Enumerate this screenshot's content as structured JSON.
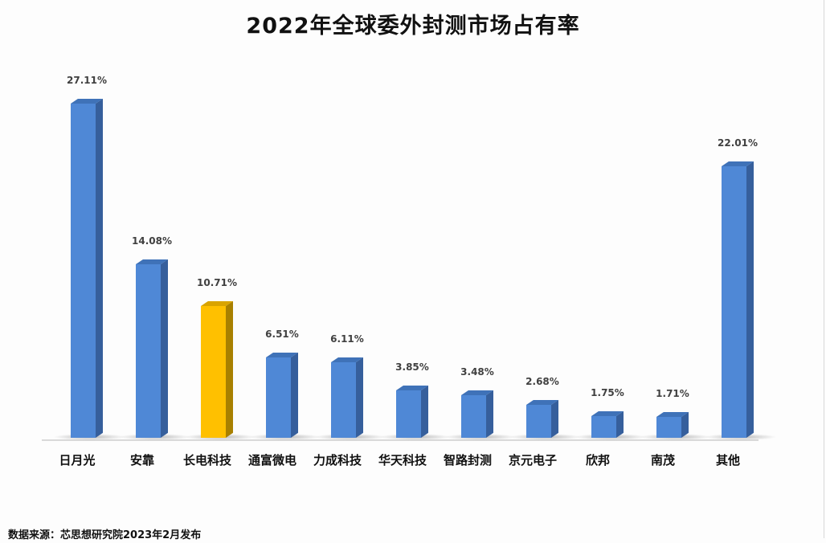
{
  "title": "2022年全球委外封测市场占有率",
  "source": "数据来源：芯思想研究院2023年2月发布",
  "colors": {
    "default_front": "#4f88d6",
    "default_side": "#365f9c",
    "default_top": "#3f72b8",
    "highlight_front": "#ffc000",
    "highlight_side": "#a88000",
    "highlight_top": "#d9a400"
  },
  "chart_data": {
    "type": "bar",
    "title": "2022年全球委外封测市场占有率",
    "xlabel": "",
    "ylabel": "",
    "categories": [
      "日月光",
      "安靠",
      "长电科技",
      "通富微电",
      "力成科技",
      "华天科技",
      "智路封测",
      "京元电子",
      "欣邦",
      "南茂",
      "其他"
    ],
    "values": [
      27.11,
      14.08,
      10.71,
      6.51,
      6.11,
      3.85,
      3.48,
      2.68,
      1.75,
      1.71,
      22.01
    ],
    "labels": [
      "27.11%",
      "14.08%",
      "10.71%",
      "6.51%",
      "6.11%",
      "3.85%",
      "3.48%",
      "2.68%",
      "1.75%",
      "1.71%",
      "22.01%"
    ],
    "unit": "%",
    "highlight_index": 2,
    "ylim": [
      0,
      27.11
    ],
    "grid": false,
    "legend": "none",
    "style": "3d-column"
  }
}
